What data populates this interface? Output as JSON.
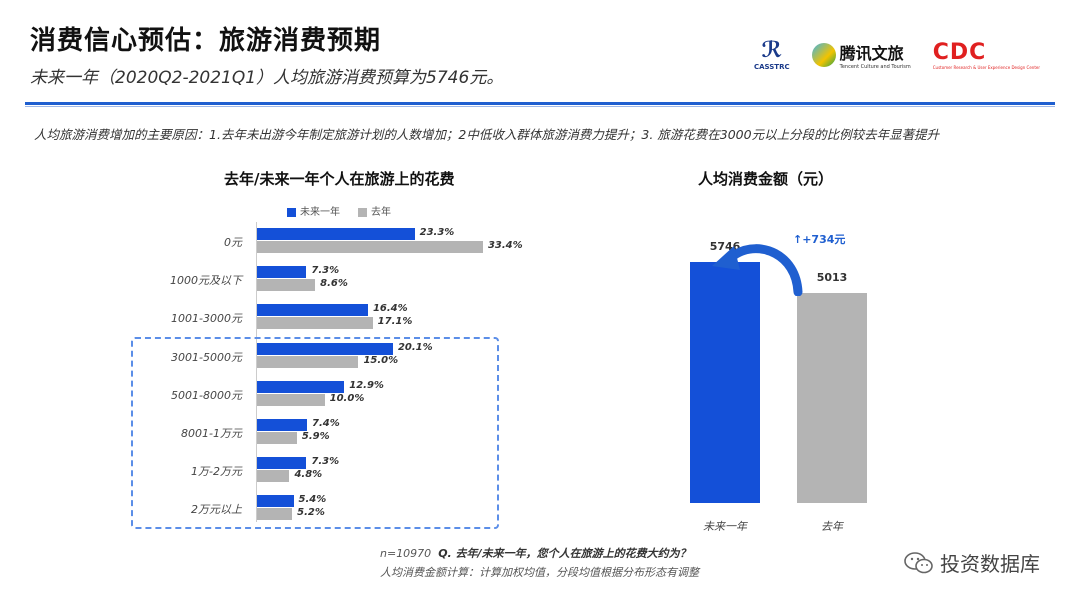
{
  "header": {
    "title": "消费信心预估：旅游消费预期",
    "subtitle": "未来一年（2020Q2-2021Q1）人均旅游消费预算为5746元。"
  },
  "logos": {
    "casstrc": "CASSTRC",
    "tencent": "腾讯文旅",
    "tencent_sub": "Tencent Culture and Tourism",
    "cdc": "CDC",
    "cdc_sub": "Customer Research & User Experience Design Center"
  },
  "note": "人均旅游消费增加的主要原因：1.去年未出游今年制定旅游计划的人数增加；2中低收入群体旅游消费力提升；3. 旅游花费在3000元以上分段的比例较去年显著提升",
  "colors": {
    "accent": "#1450d8",
    "previous": "#b4b4b4",
    "rule": "#1f5fd0"
  },
  "chart_data": [
    {
      "type": "bar",
      "orientation": "horizontal",
      "title": "去年/未来一年个人在旅游上的花费",
      "categories": [
        "0元",
        "1000元及以下",
        "1001-3000元",
        "3001-5000元",
        "5001-8000元",
        "8001-1万元",
        "1万-2万元",
        "2万元以上"
      ],
      "series": [
        {
          "name": "未来一年",
          "color": "#1450d8",
          "values": [
            23.3,
            7.3,
            16.4,
            20.1,
            12.9,
            7.4,
            7.3,
            5.4
          ],
          "labels": [
            "23.3%",
            "7.3%",
            "16.4%",
            "20.1%",
            "12.9%",
            "7.4%",
            "7.3%",
            "5.4%"
          ]
        },
        {
          "name": "去年",
          "color": "#b4b4b4",
          "values": [
            33.4,
            8.6,
            17.1,
            15.0,
            10.0,
            5.9,
            4.8,
            5.2
          ],
          "labels": [
            "33.4%",
            "8.6%",
            "17.1%",
            "15.0%",
            "10.0%",
            "5.9%",
            "4.8%",
            "5.2%"
          ]
        }
      ],
      "xlim": [
        0,
        34
      ],
      "legend": "top-left",
      "highlight_categories": [
        "3001-5000元",
        "5001-8000元",
        "8001-1万元",
        "1万-2万元",
        "2万元以上"
      ]
    },
    {
      "type": "bar",
      "orientation": "vertical",
      "title": "人均消费金额（元）",
      "categories": [
        "未来一年",
        "去年"
      ],
      "values": [
        5746,
        5013
      ],
      "labels": [
        "5746",
        "5013"
      ],
      "colors": [
        "#1450d8",
        "#b4b4b4"
      ],
      "ylim": [
        0,
        6200
      ],
      "annotation": "↑+734元"
    }
  ],
  "footer": {
    "line1_n": "n=10970",
    "line1_q": "Q. 去年/未来一年，您个人在旅游上的花费大约为？",
    "line2": "人均消费金额计算：计算加权均值，分段均值根据分布形态有调整"
  },
  "watermark": {
    "text": "投资数据库",
    "icon": "wechat-icon"
  }
}
